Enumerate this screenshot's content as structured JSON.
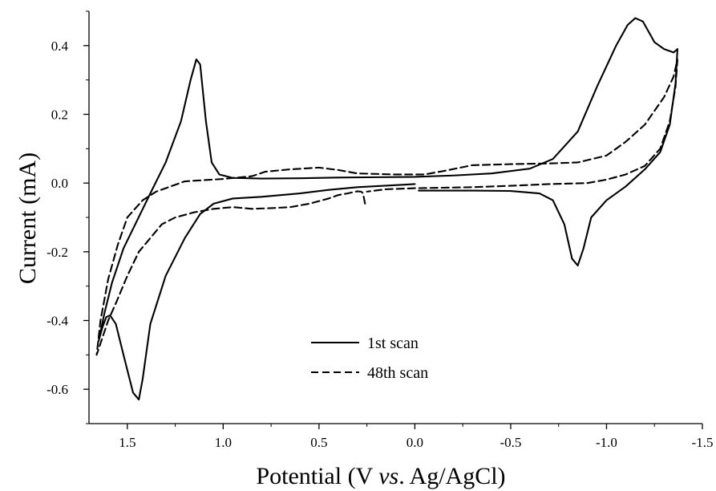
{
  "chart_data": {
    "type": "line",
    "title": "",
    "xlabel": "Potential (V vs. Ag/AgCl)",
    "ylabel": "Current (mA)",
    "xlim": [
      1.7,
      -1.5
    ],
    "ylim": [
      -0.7,
      0.5
    ],
    "x_reversed": true,
    "grid": false,
    "legend_position": "bottom-center",
    "x_ticks": [
      1.5,
      1.0,
      0.5,
      0.0,
      -0.5,
      -1.0,
      -1.5
    ],
    "x_tick_labels": [
      "1.5",
      "1.0",
      "0.5",
      "0.0",
      "-0.5",
      "-1.0",
      "-1.5"
    ],
    "y_ticks": [
      -0.6,
      -0.4,
      -0.2,
      0.0,
      0.2,
      0.4
    ],
    "y_tick_labels": [
      "-0.6",
      "-0.4",
      "-0.2",
      "0.0",
      "0.2",
      "0.4"
    ],
    "series": [
      {
        "name": "1st scan",
        "dash": "solid",
        "color": "#000000",
        "points": [
          [
            0.0,
            -0.003
          ],
          [
            0.3,
            -0.012
          ],
          [
            0.45,
            -0.02
          ],
          [
            0.6,
            -0.03
          ],
          [
            0.8,
            -0.04
          ],
          [
            0.95,
            -0.045
          ],
          [
            1.05,
            -0.06
          ],
          [
            1.12,
            -0.09
          ],
          [
            1.2,
            -0.16
          ],
          [
            1.3,
            -0.27
          ],
          [
            1.38,
            -0.41
          ],
          [
            1.42,
            -0.57
          ],
          [
            1.44,
            -0.63
          ],
          [
            1.47,
            -0.61
          ],
          [
            1.52,
            -0.5
          ],
          [
            1.56,
            -0.41
          ],
          [
            1.59,
            -0.385
          ],
          [
            1.61,
            -0.39
          ],
          [
            1.63,
            -0.42
          ],
          [
            1.65,
            -0.46
          ],
          [
            1.62,
            -0.38
          ],
          [
            1.58,
            -0.29
          ],
          [
            1.52,
            -0.19
          ],
          [
            1.45,
            -0.11
          ],
          [
            1.38,
            -0.03
          ],
          [
            1.3,
            0.06
          ],
          [
            1.22,
            0.18
          ],
          [
            1.17,
            0.3
          ],
          [
            1.14,
            0.36
          ],
          [
            1.12,
            0.345
          ],
          [
            1.09,
            0.18
          ],
          [
            1.06,
            0.06
          ],
          [
            1.02,
            0.025
          ],
          [
            0.95,
            0.015
          ],
          [
            0.8,
            0.013
          ],
          [
            0.6,
            0.014
          ],
          [
            0.4,
            0.016
          ],
          [
            0.2,
            0.017
          ],
          [
            0.0,
            0.018
          ],
          [
            -0.2,
            0.022
          ],
          [
            -0.4,
            0.028
          ],
          [
            -0.6,
            0.042
          ],
          [
            -0.72,
            0.07
          ],
          [
            -0.85,
            0.15
          ],
          [
            -0.95,
            0.28
          ],
          [
            -1.05,
            0.4
          ],
          [
            -1.11,
            0.46
          ],
          [
            -1.15,
            0.48
          ],
          [
            -1.19,
            0.47
          ],
          [
            -1.25,
            0.41
          ],
          [
            -1.3,
            0.39
          ],
          [
            -1.35,
            0.38
          ],
          [
            -1.37,
            0.39
          ],
          [
            -1.36,
            0.29
          ],
          [
            -1.33,
            0.17
          ],
          [
            -1.28,
            0.09
          ],
          [
            -1.2,
            0.04
          ],
          [
            -1.1,
            -0.01
          ],
          [
            -1.0,
            -0.05
          ],
          [
            -0.92,
            -0.1
          ],
          [
            -0.88,
            -0.19
          ],
          [
            -0.85,
            -0.24
          ],
          [
            -0.82,
            -0.22
          ],
          [
            -0.78,
            -0.12
          ],
          [
            -0.72,
            -0.05
          ],
          [
            -0.65,
            -0.03
          ],
          [
            -0.5,
            -0.023
          ],
          [
            -0.3,
            -0.022
          ],
          [
            -0.12,
            -0.022
          ],
          [
            -0.02,
            -0.022
          ]
        ]
      },
      {
        "name": "48th scan",
        "dash": "dashed",
        "color": "#000000",
        "points": [
          [
            0.26,
            -0.06
          ],
          [
            0.27,
            -0.03
          ],
          [
            0.28,
            -0.025
          ],
          [
            0.3,
            -0.024
          ],
          [
            0.35,
            -0.03
          ],
          [
            0.4,
            -0.035
          ],
          [
            0.45,
            -0.045
          ],
          [
            0.55,
            -0.06
          ],
          [
            0.65,
            -0.07
          ],
          [
            0.75,
            -0.073
          ],
          [
            0.85,
            -0.075
          ],
          [
            0.95,
            -0.07
          ],
          [
            1.05,
            -0.075
          ],
          [
            1.15,
            -0.085
          ],
          [
            1.25,
            -0.1
          ],
          [
            1.32,
            -0.12
          ],
          [
            1.38,
            -0.16
          ],
          [
            1.44,
            -0.2
          ],
          [
            1.5,
            -0.27
          ],
          [
            1.56,
            -0.35
          ],
          [
            1.6,
            -0.4
          ],
          [
            1.63,
            -0.45
          ],
          [
            1.66,
            -0.5
          ],
          [
            1.64,
            -0.4
          ],
          [
            1.6,
            -0.28
          ],
          [
            1.55,
            -0.18
          ],
          [
            1.5,
            -0.1
          ],
          [
            1.42,
            -0.05
          ],
          [
            1.35,
            -0.025
          ],
          [
            1.2,
            0.005
          ],
          [
            1.0,
            0.012
          ],
          [
            0.85,
            0.02
          ],
          [
            0.78,
            0.033
          ],
          [
            0.65,
            0.04
          ],
          [
            0.5,
            0.045
          ],
          [
            0.4,
            0.038
          ],
          [
            0.3,
            0.028
          ],
          [
            0.1,
            0.025
          ],
          [
            -0.05,
            0.025
          ],
          [
            -0.15,
            0.035
          ],
          [
            -0.3,
            0.052
          ],
          [
            -0.5,
            0.055
          ],
          [
            -0.7,
            0.057
          ],
          [
            -0.85,
            0.06
          ],
          [
            -1.0,
            0.08
          ],
          [
            -1.1,
            0.12
          ],
          [
            -1.2,
            0.17
          ],
          [
            -1.3,
            0.25
          ],
          [
            -1.35,
            0.31
          ],
          [
            -1.37,
            0.36
          ],
          [
            -1.36,
            0.28
          ],
          [
            -1.33,
            0.18
          ],
          [
            -1.28,
            0.1
          ],
          [
            -1.2,
            0.05
          ],
          [
            -1.1,
            0.025
          ],
          [
            -1.0,
            0.01
          ],
          [
            -0.9,
            0.0
          ],
          [
            -0.7,
            -0.003
          ],
          [
            -0.5,
            -0.008
          ],
          [
            -0.3,
            -0.012
          ],
          [
            -0.1,
            -0.014
          ],
          [
            0.0,
            -0.015
          ],
          [
            0.15,
            -0.018
          ],
          [
            0.25,
            -0.025
          ]
        ]
      }
    ]
  }
}
